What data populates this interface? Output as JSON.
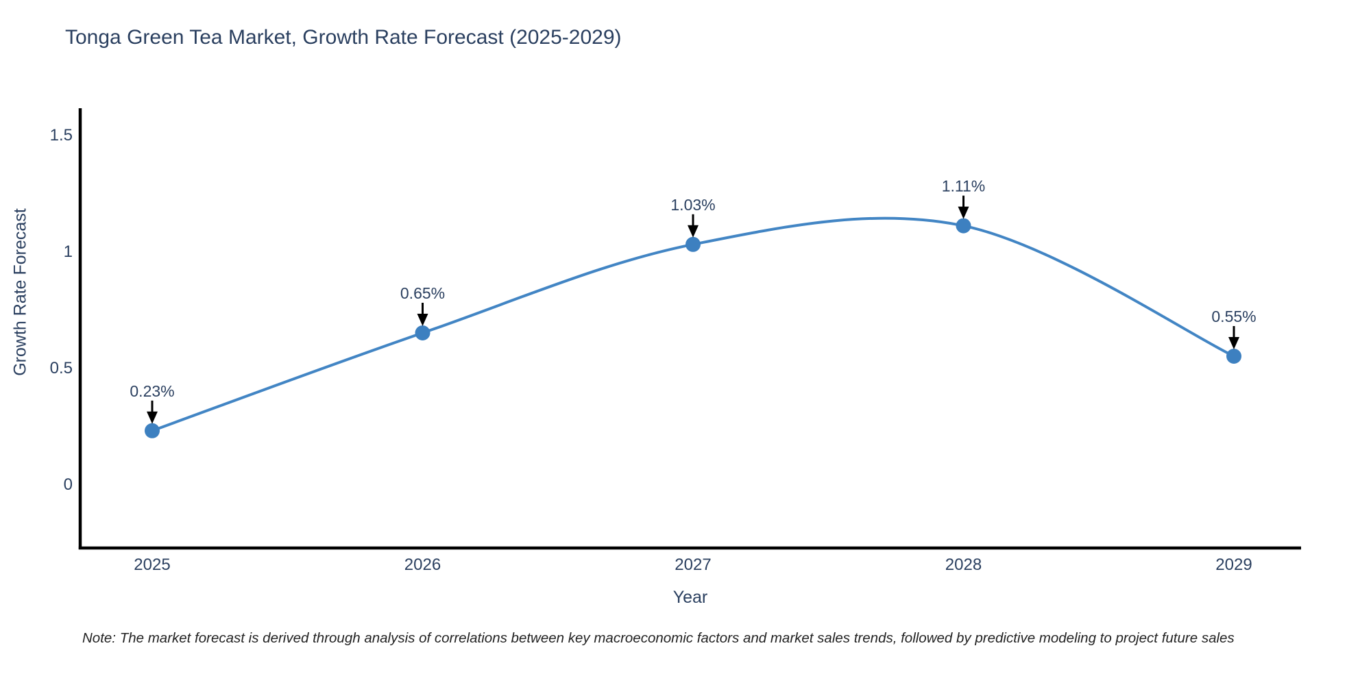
{
  "title": "Tonga Green Tea Market, Growth Rate Forecast (2025-2029)",
  "footnote": "Note: The market forecast is derived through analysis of correlations between key macroeconomic factors and market sales trends, followed by predictive modeling to project future sales",
  "colors": {
    "background": "#ffffff",
    "text": "#2a3f5f",
    "line": "#4285c4",
    "marker": "#3d80c0",
    "axis": "#000000",
    "arrow": "#000000",
    "note_text": "#222222"
  },
  "chart_data": {
    "type": "line",
    "title": "Tonga Green Tea Market, Growth Rate Forecast (2025-2029)",
    "xlabel": "Year",
    "ylabel": "Growth Rate Forecast",
    "x": [
      2025,
      2026,
      2027,
      2028,
      2029
    ],
    "series": [
      {
        "name": "Growth Rate Forecast",
        "values": [
          0.23,
          0.65,
          1.03,
          1.11,
          0.55
        ],
        "point_labels": [
          "0.23%",
          "0.65%",
          "1.03%",
          "1.11%",
          "0.55%"
        ]
      }
    ],
    "line_shape": "spline",
    "yticks": [
      0,
      0.5,
      1,
      1.5
    ],
    "ylim": [
      -0.27,
      1.61
    ],
    "xlim_years": [
      2024.73,
      2029.25
    ],
    "grid": false,
    "legend_position": "none",
    "markers": true,
    "annotations_have_arrows": true
  }
}
